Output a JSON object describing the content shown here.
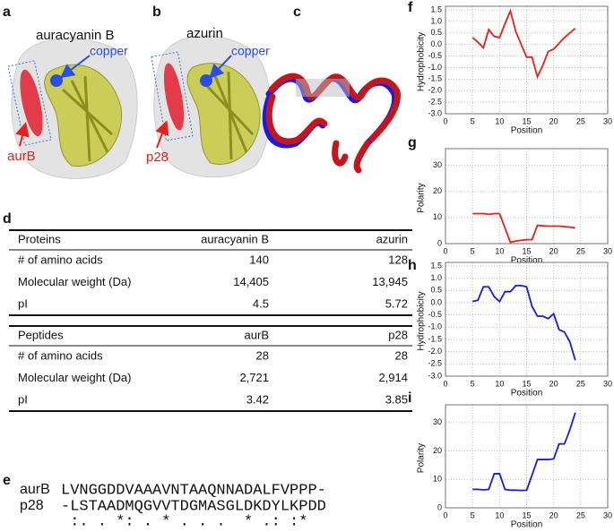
{
  "panel_labels": [
    "a",
    "b",
    "c",
    "d",
    "e",
    "f",
    "g",
    "h",
    "i"
  ],
  "structures": {
    "a": {
      "title": "auracyanin B",
      "metal": "copper",
      "peptide": "aurB"
    },
    "b": {
      "title": "azurin",
      "metal": "copper",
      "peptide": "p28"
    }
  },
  "table": {
    "sections": [
      {
        "header": [
          "Proteins",
          "auracyanin B",
          "azurin"
        ],
        "rows": [
          [
            "# of amino acids",
            "140",
            "128"
          ],
          [
            "Molecular weight (Da)",
            "14,405",
            "13,945"
          ],
          [
            "pI",
            "4.5",
            "5.72"
          ]
        ]
      },
      {
        "header": [
          "Peptides",
          "aurB",
          "p28"
        ],
        "rows": [
          [
            "# of amino acids",
            "28",
            "28"
          ],
          [
            "Molecular weight (Da)",
            "2,721",
            "2,914"
          ],
          [
            "pI",
            "3.42",
            "3.85"
          ]
        ]
      }
    ]
  },
  "alignment": {
    "rows": [
      {
        "name": "aurB",
        "sequence": "LVNGGDDVAAAVNTAAQNNADALFVPPP-"
      },
      {
        "name": "p28",
        "sequence": "-LSTAADMQGVVTDGMASGLDKDYLKPDD"
      }
    ],
    "consensus": " :. . *: . * . . .  * .: :*  "
  },
  "chart_data": [
    {
      "type": "line",
      "ylabel": "Hydrophobicity",
      "xlabel": "Position",
      "color": "#e8201c",
      "grid": true,
      "x": [
        5,
        6,
        7,
        8,
        9,
        10,
        11,
        12,
        13,
        14,
        15,
        16,
        17,
        18,
        19,
        20,
        21,
        22,
        23,
        24
      ],
      "values": [
        0.3,
        0.1,
        -0.15,
        0.65,
        0.35,
        0.3,
        0.9,
        1.45,
        0.55,
        0.0,
        -0.55,
        -0.55,
        -1.4,
        -0.9,
        -0.3,
        -0.2,
        0.05,
        0.3,
        0.5,
        0.7
      ],
      "xlim": [
        0,
        30
      ],
      "xticks": [
        0,
        5,
        10,
        15,
        20,
        25,
        30
      ],
      "ylim": [
        -3,
        1.5
      ],
      "yticks": [
        {
          "value": -3,
          "label": "-3.0"
        },
        -2.5,
        {
          "value": -2,
          "label": "-2.0"
        },
        -1.5,
        {
          "value": -1,
          "label": "-1.0"
        },
        -0.5,
        {
          "value": 0,
          "label": "0.0"
        },
        0.5,
        {
          "value": 1,
          "label": "1.0"
        },
        1.5
      ]
    },
    {
      "type": "line",
      "ylabel": "Polarity",
      "xlabel": "Position",
      "color": "#e8201c",
      "grid": true,
      "x": [
        5,
        6,
        7,
        8,
        9,
        10,
        11,
        12,
        13,
        14,
        15,
        16,
        17,
        18,
        19,
        20,
        21,
        22,
        23,
        24
      ],
      "values": [
        11.5,
        11.5,
        11.5,
        11.2,
        11.5,
        11.5,
        6,
        0.5,
        1,
        1.3,
        1.5,
        1.5,
        7,
        6.8,
        6.7,
        6.7,
        6.7,
        6.5,
        6.3,
        6
      ],
      "xlim": [
        0,
        30
      ],
      "xticks": [
        0,
        5,
        10,
        15,
        20,
        25,
        30
      ],
      "ylim": [
        0,
        35
      ],
      "yticks": [
        0,
        10,
        20,
        30
      ]
    },
    {
      "type": "line",
      "ylabel": "Hydrophobicity",
      "xlabel": "Position",
      "color": "#1a1ae0",
      "grid": true,
      "x": [
        5,
        6,
        7,
        8,
        9,
        10,
        11,
        12,
        13,
        14,
        15,
        16,
        17,
        18,
        19,
        20,
        21,
        22,
        23,
        24
      ],
      "values": [
        0.05,
        0.1,
        0.65,
        0.65,
        0.25,
        0.05,
        0.45,
        0.45,
        0.7,
        0.7,
        0.65,
        -0.15,
        -0.55,
        -0.55,
        -0.65,
        -0.45,
        -1.1,
        -1.2,
        -1.6,
        -2.35
      ],
      "xlim": [
        0,
        30
      ],
      "xticks": [
        0,
        5,
        10,
        15,
        20,
        25,
        30
      ],
      "ylim": [
        -3,
        1.5
      ],
      "yticks": [
        {
          "value": -3,
          "label": "-3.0"
        },
        -2.5,
        {
          "value": -2,
          "label": "-2.0"
        },
        -1.5,
        {
          "value": -1,
          "label": "-1.0"
        },
        -0.5,
        {
          "value": 0,
          "label": "0.0"
        },
        0.5,
        {
          "value": 1,
          "label": "1.0"
        },
        1.5
      ]
    },
    {
      "type": "line",
      "ylabel": "Polarity",
      "xlabel": "Position",
      "color": "#1a1ae0",
      "grid": true,
      "x": [
        5,
        6,
        7,
        8,
        9,
        10,
        11,
        12,
        13,
        14,
        15,
        16,
        17,
        18,
        19,
        20,
        21,
        22,
        23,
        24
      ],
      "values": [
        6.5,
        6.5,
        6.3,
        6.5,
        12,
        12,
        6.5,
        6.2,
        6.2,
        6.1,
        6.2,
        11.5,
        17,
        17,
        17,
        17.2,
        22.5,
        22.5,
        27.5,
        33.5
      ],
      "xlim": [
        0,
        30
      ],
      "xticks": [
        0,
        5,
        10,
        15,
        20,
        25,
        30
      ],
      "ylim": [
        0,
        35
      ],
      "yticks": [
        0,
        10,
        20,
        30
      ]
    }
  ]
}
